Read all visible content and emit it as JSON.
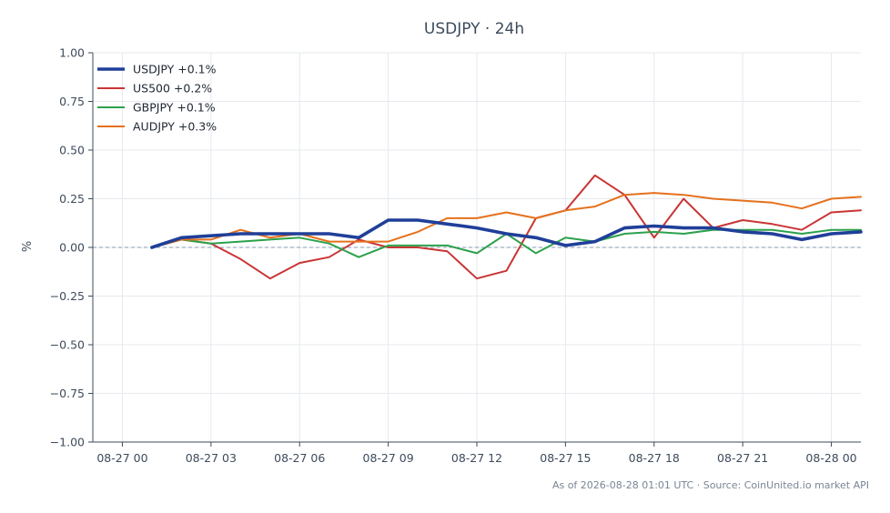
{
  "chart_data": {
    "type": "line",
    "title": "USDJPY · 24h",
    "ylabel": "%",
    "xlabel": "",
    "ylim": [
      -1.0,
      1.0
    ],
    "y_ticks": [
      1.0,
      0.75,
      0.5,
      0.25,
      0.0,
      -0.25,
      -0.5,
      -0.75,
      -1.0
    ],
    "y_tick_labels": [
      "1.00",
      "0.75",
      "0.50",
      "0.25",
      "0.00",
      "−0.25",
      "−0.50",
      "−0.75",
      "−1.00"
    ],
    "x_ticks": [
      "08-27 00",
      "08-27 03",
      "08-27 06",
      "08-27 09",
      "08-27 12",
      "08-27 15",
      "08-27 18",
      "08-27 21",
      "08-28 00"
    ],
    "x_tick_hours": [
      0,
      3,
      6,
      9,
      12,
      15,
      18,
      21,
      24
    ],
    "x_hours": [
      1,
      2,
      3,
      4,
      5,
      6,
      7,
      8,
      9,
      10,
      11,
      12,
      13,
      14,
      15,
      16,
      17,
      18,
      19,
      20,
      21,
      22,
      23,
      24,
      25
    ],
    "grid": true,
    "zero_line": true,
    "legend_position": "top-left",
    "series": [
      {
        "name": "USDJPY +0.1%",
        "color": "#1f3f99",
        "emphasis": true,
        "values": [
          0.0,
          0.05,
          0.06,
          0.07,
          0.07,
          0.07,
          0.07,
          0.05,
          0.14,
          0.14,
          0.12,
          0.1,
          0.07,
          0.05,
          0.01,
          0.03,
          0.1,
          0.11,
          0.1,
          0.1,
          0.08,
          0.07,
          0.04,
          0.07,
          0.08
        ]
      },
      {
        "name": "US500 +0.2%",
        "color": "#c93535",
        "emphasis": false,
        "values": [
          0.0,
          0.04,
          0.02,
          -0.06,
          -0.16,
          -0.08,
          -0.05,
          0.04,
          0.0,
          0.0,
          -0.02,
          -0.16,
          -0.12,
          0.15,
          0.19,
          0.37,
          0.27,
          0.05,
          0.25,
          0.1,
          0.14,
          0.12,
          0.09,
          0.18,
          0.19
        ]
      },
      {
        "name": "GBPJPY +0.1%",
        "color": "#2ca14b",
        "emphasis": false,
        "values": [
          0.0,
          0.04,
          0.02,
          0.03,
          0.04,
          0.05,
          0.02,
          -0.05,
          0.01,
          0.01,
          0.01,
          -0.03,
          0.07,
          -0.03,
          0.05,
          0.03,
          0.07,
          0.08,
          0.07,
          0.09,
          0.09,
          0.09,
          0.07,
          0.09,
          0.09
        ]
      },
      {
        "name": "AUDJPY +0.3%",
        "color": "#e5711d",
        "emphasis": false,
        "values": [
          0.0,
          0.04,
          0.04,
          0.09,
          0.05,
          0.07,
          0.03,
          0.03,
          0.03,
          0.08,
          0.15,
          0.15,
          0.18,
          0.15,
          0.19,
          0.21,
          0.27,
          0.28,
          0.27,
          0.25,
          0.24,
          0.23,
          0.2,
          0.25,
          0.26
        ]
      }
    ]
  },
  "footer": "As of 2026-08-28 01:01 UTC · Source: CoinUnited.io market API"
}
